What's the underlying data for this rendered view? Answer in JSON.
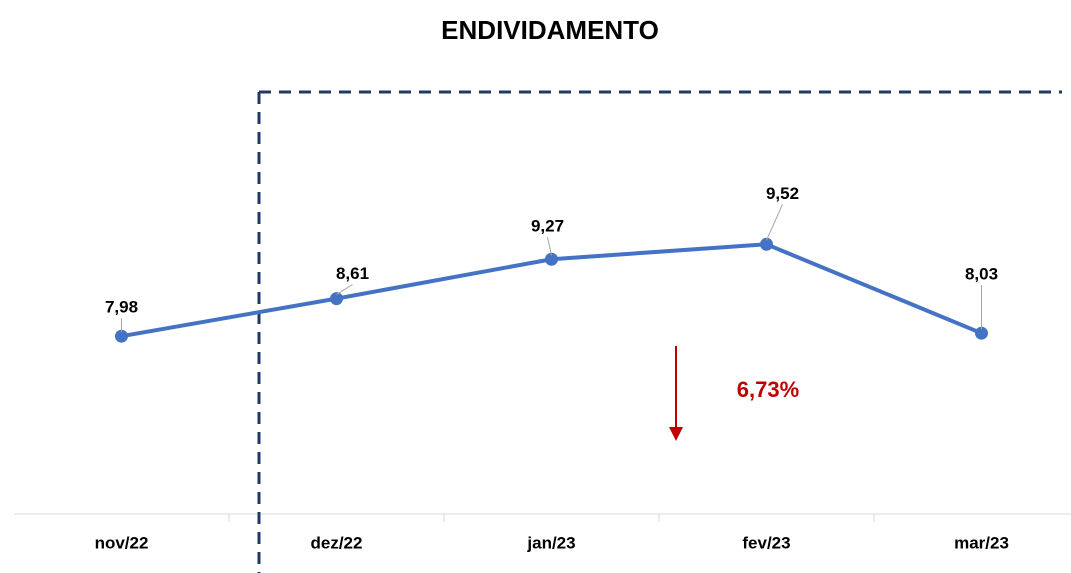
{
  "chart_data": {
    "type": "line",
    "title": "ENDIVIDAMENTO",
    "categories": [
      "nov/22",
      "dez/22",
      "jan/23",
      "fev/23",
      "mar/23"
    ],
    "series": [
      {
        "name": "Endividamento",
        "color": "#4472c4",
        "values": [
          7.98,
          8.61,
          9.27,
          9.52,
          8.03
        ],
        "value_labels": [
          "7,98",
          "8,61",
          "9,27",
          "9,52",
          "8,03"
        ]
      }
    ],
    "ylim": [
      5,
      11
    ],
    "annotation": "6,73%",
    "annotation_color": "#c00000"
  }
}
